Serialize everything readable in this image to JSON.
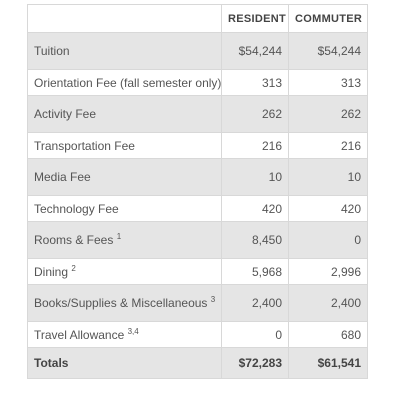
{
  "table": {
    "headers": [
      "",
      "RESIDENT",
      "COMMUTER"
    ],
    "rows": [
      {
        "label": "Tuition",
        "sup": "",
        "resident": "$54,244",
        "commuter": "$54,244"
      },
      {
        "label": "Orientation Fee (fall semester only)",
        "sup": "",
        "resident": "313",
        "commuter": "313"
      },
      {
        "label": "Activity Fee",
        "sup": "",
        "resident": "262",
        "commuter": "262"
      },
      {
        "label": "Transportation Fee",
        "sup": "",
        "resident": "216",
        "commuter": "216"
      },
      {
        "label": "Media Fee",
        "sup": "",
        "resident": "10",
        "commuter": "10"
      },
      {
        "label": "Technology Fee",
        "sup": "",
        "resident": "420",
        "commuter": "420"
      },
      {
        "label": "Rooms & Fees",
        "sup": "1",
        "resident": "8,450",
        "commuter": "0"
      },
      {
        "label": "Dining",
        "sup": "2",
        "resident": "5,968",
        "commuter": "2,996"
      },
      {
        "label": "Books/Supplies & Miscellaneous",
        "sup": "3",
        "resident": "2,400",
        "commuter": "2,400"
      },
      {
        "label": "Travel Allowance",
        "sup": "3,4",
        "resident": "0",
        "commuter": "680"
      }
    ],
    "totals": {
      "label": "Totals",
      "resident": "$72,283",
      "commuter": "$61,541"
    }
  },
  "colors": {
    "gray_row": "#e5e5e5",
    "border": "#d8d8d8",
    "text": "#555555"
  }
}
